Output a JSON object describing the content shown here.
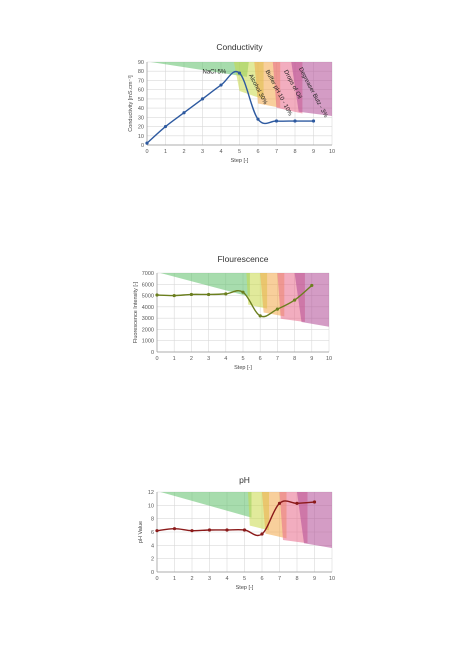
{
  "chart_data": [
    {
      "type": "line",
      "title": "Conductivity",
      "xlabel": "Step [-]",
      "ylabel": "Conductivity [mS.cm⁻¹]",
      "xlim": [
        0,
        10
      ],
      "ylim": [
        0,
        90
      ],
      "xticks": [
        "0",
        "1",
        "2",
        "3",
        "4",
        "5",
        "6",
        "7",
        "8",
        "9",
        "10"
      ],
      "yticks": [
        "0",
        "10",
        "20",
        "30",
        "40",
        "50",
        "60",
        "70",
        "80",
        "90"
      ],
      "grid": true,
      "series": [
        {
          "x": [
            0,
            1,
            2,
            3,
            4,
            5,
            6,
            7,
            8,
            9
          ],
          "y": [
            2,
            20,
            35,
            50,
            65,
            78,
            28,
            26,
            26,
            26
          ],
          "color": "#2e5aa0"
        }
      ],
      "annotations": [
        "NaCl 5%",
        "Alcohol 30%",
        "Buffer pH 10 - 10%",
        "Drops of Oil",
        "Degreaser Butz - 3%"
      ]
    },
    {
      "type": "line",
      "title": "Flourescence",
      "xlabel": "Step [-]",
      "ylabel": "Fluorescence Intensity [-]",
      "xlim": [
        0,
        10
      ],
      "ylim": [
        0,
        7000
      ],
      "xticks": [
        "0",
        "1",
        "2",
        "3",
        "4",
        "5",
        "6",
        "7",
        "8",
        "9",
        "10"
      ],
      "yticks": [
        "0",
        "1000",
        "2000",
        "3000",
        "4000",
        "5000",
        "6000",
        "7000"
      ],
      "grid": true,
      "series": [
        {
          "x": [
            0,
            1,
            2,
            3,
            4,
            5,
            6,
            7,
            8,
            9
          ],
          "y": [
            5050,
            5000,
            5100,
            5100,
            5150,
            5300,
            3200,
            3800,
            4600,
            5900
          ],
          "color": "#6b7f1e"
        }
      ]
    },
    {
      "type": "line",
      "title": "pH",
      "xlabel": "Step [-]",
      "ylabel": "pH Value",
      "xlim": [
        0,
        10
      ],
      "ylim": [
        0,
        12
      ],
      "xticks": [
        "0",
        "1",
        "2",
        "3",
        "4",
        "5",
        "6",
        "7",
        "8",
        "9",
        "10"
      ],
      "yticks": [
        "0",
        "2",
        "4",
        "6",
        "8",
        "10",
        "12"
      ],
      "grid": true,
      "series": [
        {
          "x": [
            0,
            1,
            2,
            3,
            4,
            5,
            6,
            7,
            8,
            9
          ],
          "y": [
            6.2,
            6.5,
            6.2,
            6.3,
            6.3,
            6.3,
            5.7,
            10.3,
            10.3,
            10.5
          ],
          "color": "#8b1a1a"
        }
      ]
    }
  ]
}
